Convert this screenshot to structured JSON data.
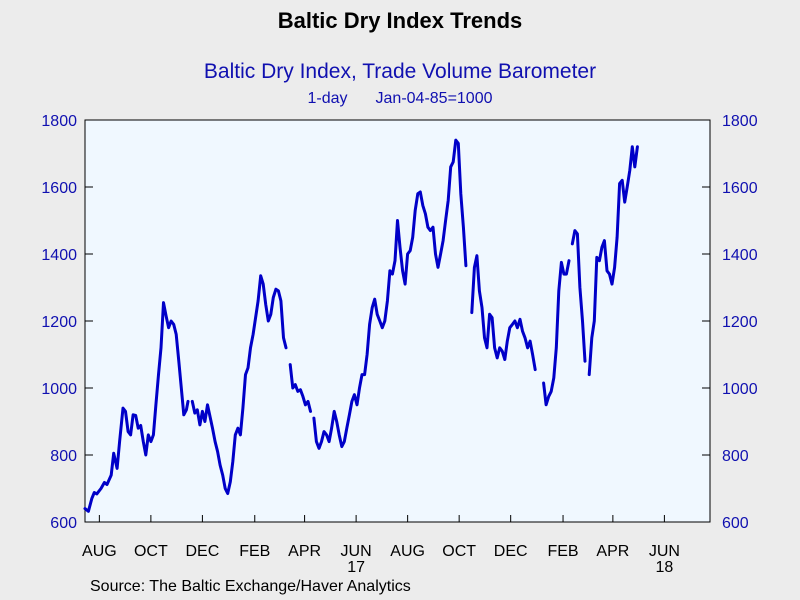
{
  "chart_data": {
    "type": "line",
    "title": "Baltic Dry Index Trends",
    "series_title": "Baltic Dry Index, Trade Volume Barometer",
    "frequency": "1-day",
    "base": "Jan-04-85=1000",
    "source": "Source:  The Baltic Exchange/Haver Analytics",
    "ylim": [
      600,
      1800
    ],
    "yticks": [
      600,
      800,
      1000,
      1200,
      1400,
      1600,
      1800
    ],
    "x_range": [
      "2016-07-15",
      "2018-07-25"
    ],
    "xticks": [
      {
        "date": "2016-08-01",
        "label": "AUG"
      },
      {
        "date": "2016-10-01",
        "label": "OCT"
      },
      {
        "date": "2016-12-01",
        "label": "DEC"
      },
      {
        "date": "2017-02-01",
        "label": "FEB"
      },
      {
        "date": "2017-04-01",
        "label": "APR"
      },
      {
        "date": "2017-06-01",
        "label": "JUN",
        "year": "17"
      },
      {
        "date": "2017-08-01",
        "label": "AUG"
      },
      {
        "date": "2017-10-01",
        "label": "OCT"
      },
      {
        "date": "2017-12-01",
        "label": "DEC"
      },
      {
        "date": "2018-02-01",
        "label": "FEB"
      },
      {
        "date": "2018-04-01",
        "label": "APR"
      },
      {
        "date": "2018-06-01",
        "label": "JUN",
        "year": "18"
      }
    ],
    "grid": false,
    "line_color": "#0000C8",
    "background_color": "#F0F8FF",
    "series": [
      {
        "segments": [
          [
            [
              "2016-07-15",
              640
            ],
            [
              "2016-07-19",
              632
            ],
            [
              "2016-07-23",
              670
            ],
            [
              "2016-07-26",
              688
            ],
            [
              "2016-07-29",
              684
            ],
            [
              "2016-08-03",
              700
            ],
            [
              "2016-08-07",
              718
            ],
            [
              "2016-08-10",
              712
            ],
            [
              "2016-08-15",
              740
            ],
            [
              "2016-08-18",
              805
            ],
            [
              "2016-08-22",
              760
            ],
            [
              "2016-08-25",
              840
            ],
            [
              "2016-08-29",
              940
            ],
            [
              "2016-09-01",
              930
            ],
            [
              "2016-09-04",
              870
            ],
            [
              "2016-09-07",
              860
            ],
            [
              "2016-09-10",
              920
            ],
            [
              "2016-09-13",
              918
            ],
            [
              "2016-09-16",
              880
            ],
            [
              "2016-09-19",
              888
            ],
            [
              "2016-09-22",
              840
            ],
            [
              "2016-09-25",
              800
            ],
            [
              "2016-09-28",
              860
            ],
            [
              "2016-10-01",
              840
            ],
            [
              "2016-10-04",
              860
            ],
            [
              "2016-10-07",
              950
            ],
            [
              "2016-10-10",
              1040
            ],
            [
              "2016-10-13",
              1120
            ],
            [
              "2016-10-16",
              1255
            ],
            [
              "2016-10-19",
              1215
            ],
            [
              "2016-10-22",
              1180
            ],
            [
              "2016-10-25",
              1200
            ],
            [
              "2016-10-28",
              1190
            ],
            [
              "2016-10-31",
              1160
            ],
            [
              "2016-11-03",
              1080
            ],
            [
              "2016-11-06",
              1000
            ],
            [
              "2016-11-09",
              920
            ],
            [
              "2016-11-12",
              935
            ],
            [
              "2016-11-14",
              960
            ]
          ],
          [
            [
              "2016-11-19",
              960
            ],
            [
              "2016-11-22",
              925
            ],
            [
              "2016-11-25",
              935
            ],
            [
              "2016-11-28",
              890
            ],
            [
              "2016-12-01",
              930
            ],
            [
              "2016-12-04",
              900
            ],
            [
              "2016-12-07",
              950
            ],
            [
              "2016-12-10",
              915
            ],
            [
              "2016-12-13",
              880
            ],
            [
              "2016-12-16",
              840
            ],
            [
              "2016-12-19",
              810
            ],
            [
              "2016-12-22",
              770
            ],
            [
              "2016-12-25",
              740
            ],
            [
              "2016-12-28",
              700
            ],
            [
              "2016-12-31",
              685
            ],
            [
              "2017-01-03",
              720
            ],
            [
              "2017-01-06",
              780
            ],
            [
              "2017-01-09",
              860
            ],
            [
              "2017-01-12",
              880
            ],
            [
              "2017-01-15",
              860
            ],
            [
              "2017-01-18",
              940
            ],
            [
              "2017-01-21",
              1040
            ],
            [
              "2017-01-24",
              1060
            ],
            [
              "2017-01-27",
              1120
            ],
            [
              "2017-01-30",
              1160
            ],
            [
              "2017-02-02",
              1210
            ],
            [
              "2017-02-05",
              1260
            ],
            [
              "2017-02-08",
              1335
            ],
            [
              "2017-02-11",
              1310
            ],
            [
              "2017-02-14",
              1250
            ],
            [
              "2017-02-17",
              1200
            ],
            [
              "2017-02-20",
              1220
            ],
            [
              "2017-02-23",
              1270
            ],
            [
              "2017-02-26",
              1295
            ],
            [
              "2017-03-01",
              1290
            ],
            [
              "2017-03-04",
              1260
            ],
            [
              "2017-03-07",
              1150
            ],
            [
              "2017-03-10",
              1120
            ]
          ],
          [
            [
              "2017-03-15",
              1070
            ],
            [
              "2017-03-18",
              1000
            ],
            [
              "2017-03-21",
              1010
            ],
            [
              "2017-03-24",
              990
            ],
            [
              "2017-03-27",
              995
            ],
            [
              "2017-03-30",
              975
            ],
            [
              "2017-04-02",
              950
            ],
            [
              "2017-04-05",
              960
            ],
            [
              "2017-04-08",
              930
            ]
          ],
          [
            [
              "2017-04-12",
              910
            ],
            [
              "2017-04-15",
              840
            ],
            [
              "2017-04-18",
              820
            ],
            [
              "2017-04-21",
              840
            ],
            [
              "2017-04-24",
              870
            ],
            [
              "2017-04-27",
              860
            ],
            [
              "2017-04-30",
              840
            ],
            [
              "2017-05-03",
              880
            ],
            [
              "2017-05-06",
              930
            ],
            [
              "2017-05-09",
              900
            ],
            [
              "2017-05-12",
              860
            ],
            [
              "2017-05-15",
              825
            ],
            [
              "2017-05-18",
              840
            ],
            [
              "2017-05-21",
              880
            ],
            [
              "2017-05-24",
              920
            ],
            [
              "2017-05-27",
              960
            ],
            [
              "2017-05-30",
              980
            ],
            [
              "2017-06-02",
              950
            ],
            [
              "2017-06-05",
              1000
            ],
            [
              "2017-06-08",
              1040
            ],
            [
              "2017-06-11",
              1040
            ],
            [
              "2017-06-14",
              1100
            ],
            [
              "2017-06-17",
              1190
            ],
            [
              "2017-06-20",
              1240
            ],
            [
              "2017-06-23",
              1265
            ],
            [
              "2017-06-26",
              1220
            ],
            [
              "2017-06-29",
              1200
            ],
            [
              "2017-07-02",
              1180
            ],
            [
              "2017-07-05",
              1200
            ],
            [
              "2017-07-08",
              1260
            ],
            [
              "2017-07-11",
              1350
            ],
            [
              "2017-07-14",
              1340
            ],
            [
              "2017-07-17",
              1380
            ],
            [
              "2017-07-20",
              1500
            ],
            [
              "2017-07-23",
              1420
            ],
            [
              "2017-07-26",
              1350
            ],
            [
              "2017-07-29",
              1310
            ],
            [
              "2017-08-01",
              1400
            ],
            [
              "2017-08-04",
              1410
            ],
            [
              "2017-08-07",
              1450
            ],
            [
              "2017-08-10",
              1530
            ],
            [
              "2017-08-13",
              1580
            ],
            [
              "2017-08-16",
              1585
            ],
            [
              "2017-08-19",
              1545
            ],
            [
              "2017-08-22",
              1520
            ],
            [
              "2017-08-25",
              1480
            ],
            [
              "2017-08-28",
              1470
            ],
            [
              "2017-08-31",
              1480
            ],
            [
              "2017-09-03",
              1400
            ],
            [
              "2017-09-06",
              1360
            ],
            [
              "2017-09-09",
              1400
            ],
            [
              "2017-09-12",
              1440
            ],
            [
              "2017-09-15",
              1500
            ],
            [
              "2017-09-18",
              1560
            ],
            [
              "2017-09-21",
              1660
            ],
            [
              "2017-09-24",
              1675
            ],
            [
              "2017-09-27",
              1740
            ],
            [
              "2017-09-30",
              1730
            ],
            [
              "2017-10-03",
              1580
            ],
            [
              "2017-10-06",
              1480
            ],
            [
              "2017-10-09",
              1365
            ]
          ],
          [
            [
              "2017-10-16",
              1225
            ],
            [
              "2017-10-19",
              1360
            ],
            [
              "2017-10-22",
              1395
            ],
            [
              "2017-10-25",
              1290
            ],
            [
              "2017-10-28",
              1240
            ],
            [
              "2017-10-31",
              1150
            ],
            [
              "2017-11-03",
              1120
            ],
            [
              "2017-11-06",
              1220
            ],
            [
              "2017-11-09",
              1210
            ],
            [
              "2017-11-12",
              1120
            ],
            [
              "2017-11-15",
              1090
            ],
            [
              "2017-11-18",
              1120
            ],
            [
              "2017-11-21",
              1110
            ],
            [
              "2017-11-24",
              1085
            ],
            [
              "2017-11-27",
              1140
            ],
            [
              "2017-11-30",
              1180
            ],
            [
              "2017-12-03",
              1190
            ],
            [
              "2017-12-06",
              1200
            ],
            [
              "2017-12-09",
              1180
            ],
            [
              "2017-12-12",
              1205
            ],
            [
              "2017-12-15",
              1170
            ],
            [
              "2017-12-18",
              1150
            ],
            [
              "2017-12-21",
              1120
            ],
            [
              "2017-12-24",
              1140
            ],
            [
              "2017-12-27",
              1100
            ],
            [
              "2017-12-30",
              1055
            ]
          ],
          [
            [
              "2018-01-09",
              1015
            ],
            [
              "2018-01-12",
              950
            ],
            [
              "2018-01-15",
              975
            ],
            [
              "2018-01-18",
              990
            ],
            [
              "2018-01-21",
              1030
            ],
            [
              "2018-01-24",
              1120
            ],
            [
              "2018-01-27",
              1290
            ],
            [
              "2018-01-30",
              1375
            ],
            [
              "2018-02-02",
              1340
            ],
            [
              "2018-02-05",
              1340
            ],
            [
              "2018-02-08",
              1380
            ]
          ],
          [
            [
              "2018-02-12",
              1430
            ],
            [
              "2018-02-15",
              1470
            ],
            [
              "2018-02-18",
              1460
            ],
            [
              "2018-02-21",
              1300
            ],
            [
              "2018-02-24",
              1200
            ],
            [
              "2018-02-27",
              1080
            ]
          ],
          [
            [
              "2018-03-04",
              1040
            ],
            [
              "2018-03-07",
              1150
            ],
            [
              "2018-03-10",
              1200
            ],
            [
              "2018-03-13",
              1390
            ],
            [
              "2018-03-16",
              1380
            ],
            [
              "2018-03-19",
              1420
            ],
            [
              "2018-03-22",
              1440
            ],
            [
              "2018-03-25",
              1350
            ],
            [
              "2018-03-28",
              1340
            ],
            [
              "2018-03-31",
              1310
            ],
            [
              "2018-04-03",
              1360
            ],
            [
              "2018-04-06",
              1450
            ],
            [
              "2018-04-09",
              1610
            ],
            [
              "2018-04-12",
              1620
            ],
            [
              "2018-04-15",
              1555
            ],
            [
              "2018-04-18",
              1600
            ],
            [
              "2018-04-21",
              1650
            ],
            [
              "2018-04-24",
              1720
            ],
            [
              "2018-04-27",
              1660
            ],
            [
              "2018-04-30",
              1720
            ]
          ]
        ]
      }
    ]
  }
}
